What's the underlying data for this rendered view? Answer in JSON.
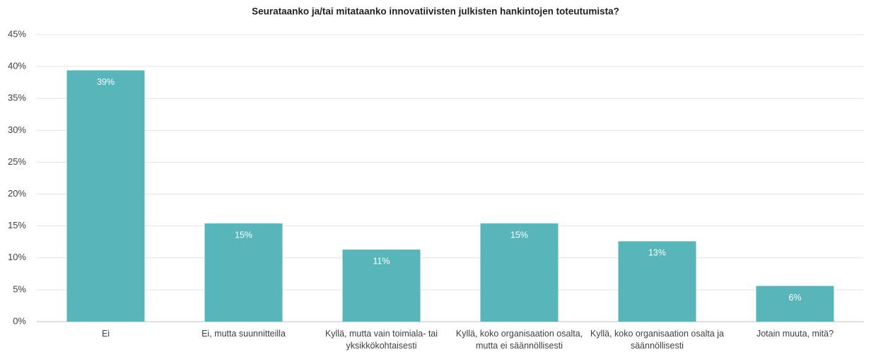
{
  "chart_data": {
    "type": "bar",
    "title": "Seurataanko ja/tai mitataanko innovatiivisten julkisten hankintojen toteutumista?",
    "categories": [
      "Ei",
      "Ei, mutta suunnitteilla",
      "Kyllä, mutta vain toimiala- tai yksikkökohtaisesti",
      "Kyllä, koko organisaation osalta, mutta ei säännöllisesti",
      "Kyllä, koko organisaation osalta ja säännöllisesti",
      "Jotain muuta, mitä?"
    ],
    "values": [
      39.4,
      15.4,
      11.3,
      15.4,
      12.6,
      5.6
    ],
    "value_labels": [
      "39%",
      "15%",
      "11%",
      "15%",
      "13%",
      "6%"
    ],
    "color": "#58b5ba",
    "ylim": [
      0,
      45
    ],
    "yticks": [
      {
        "value": 0,
        "label": "0%"
      },
      {
        "value": 5,
        "label": "5%"
      },
      {
        "value": 10,
        "label": "10%"
      },
      {
        "value": 15,
        "label": "15%"
      },
      {
        "value": 20,
        "label": "20%"
      },
      {
        "value": 25,
        "label": "25%"
      },
      {
        "value": 30,
        "label": "30%"
      },
      {
        "value": 35,
        "label": "35%"
      },
      {
        "value": 40,
        "label": "40%"
      },
      {
        "value": 45,
        "label": "45%"
      }
    ],
    "grid": true
  }
}
